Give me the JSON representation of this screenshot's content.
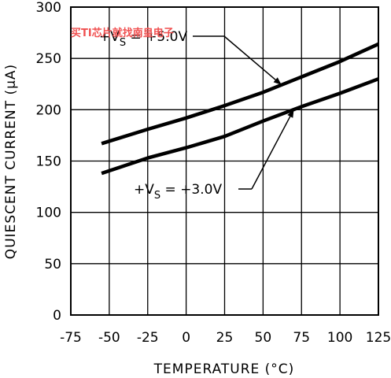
{
  "watermark": "买TI芯片就找南皇电子",
  "chart_data": {
    "type": "line",
    "title": "",
    "xlabel": "TEMPERATURE (°C)",
    "ylabel": "QUIESCENT CURRENT (μA)",
    "xlim": [
      -75,
      125
    ],
    "ylim": [
      0,
      300
    ],
    "xticks": [
      -75,
      -50,
      -25,
      0,
      25,
      50,
      75,
      100,
      125
    ],
    "xtick_labels": [
      "-75",
      "-50",
      "-25",
      "0",
      "25",
      "50",
      "75",
      "100",
      "125"
    ],
    "yticks": [
      0,
      50,
      100,
      150,
      200,
      250,
      300
    ],
    "ytick_labels": [
      "0",
      "50",
      "100",
      "150",
      "200",
      "250",
      "300"
    ],
    "grid": true,
    "series": [
      {
        "name": "+VS = +5.0V",
        "x": [
          -55,
          -25,
          0,
          25,
          50,
          75,
          100,
          125
        ],
        "y": [
          167,
          181,
          192,
          204,
          217,
          232,
          247,
          264
        ]
      },
      {
        "name": "+VS = +3.0V",
        "x": [
          -55,
          -25,
          0,
          25,
          50,
          75,
          100,
          125
        ],
        "y": [
          138,
          153,
          163,
          174,
          189,
          203,
          216,
          230
        ]
      }
    ],
    "annotations": [
      {
        "label_main": "+V",
        "label_sub": "S",
        "label_rest": " = +5.0V",
        "series": 0,
        "x": 62
      },
      {
        "label_main": "+V",
        "label_sub": "S",
        "label_rest": " = +3.0V",
        "series": 1,
        "x": 70
      }
    ]
  }
}
